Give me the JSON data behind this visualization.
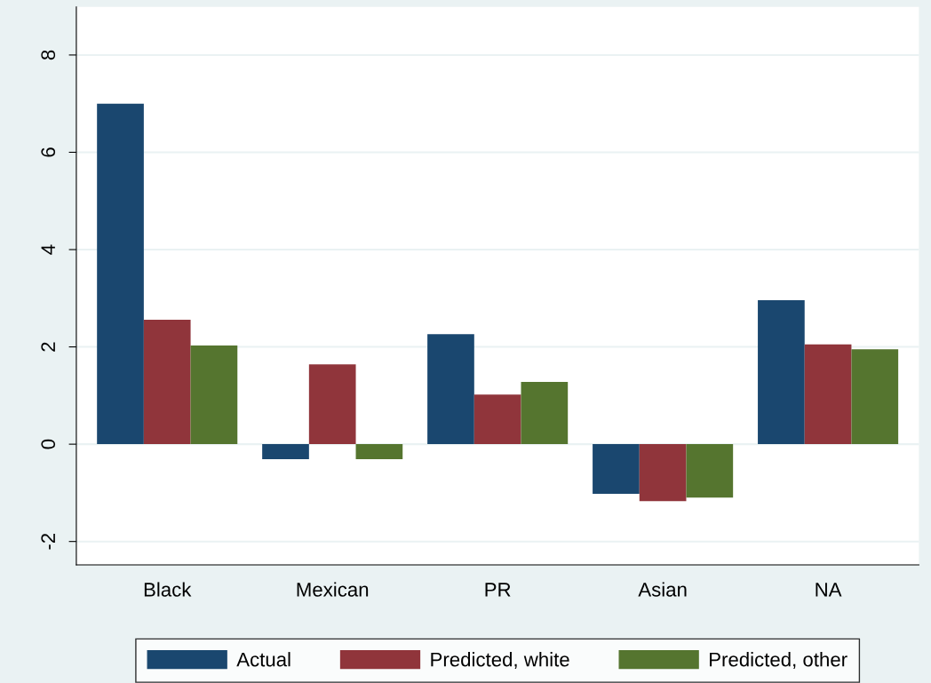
{
  "chart_data": {
    "type": "bar",
    "categories": [
      "Black",
      "Mexican",
      "PR",
      "Asian",
      "NA"
    ],
    "series": [
      {
        "name": "Actual",
        "color": "#1a476f",
        "values": [
          7.0,
          -0.31,
          2.26,
          -1.02,
          2.96
        ]
      },
      {
        "name": "Predicted, white",
        "color": "#90353b",
        "values": [
          2.56,
          1.64,
          1.02,
          -1.17,
          2.05
        ]
      },
      {
        "name": "Predicted, other",
        "color": "#55752f",
        "values": [
          2.03,
          -0.31,
          1.28,
          -1.1,
          1.95
        ]
      }
    ],
    "ylim": [
      -2.48,
      8.99
    ],
    "yticks": [
      -2,
      0,
      2,
      4,
      6,
      8
    ],
    "grid": "y",
    "legend": "bottom"
  }
}
